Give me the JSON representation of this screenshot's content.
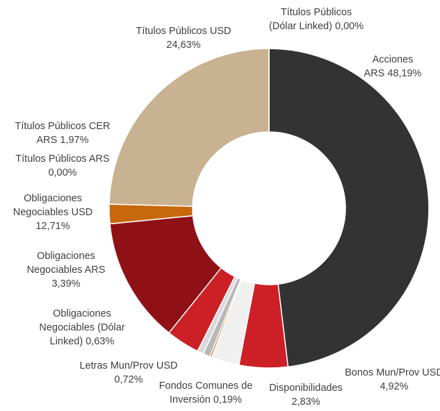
{
  "chart_data": {
    "type": "donut",
    "categories": [
      [
        "Acciones",
        "ARS 48,19%"
      ],
      [
        "Bonos Mun/Prov USD",
        "4,92%"
      ],
      [
        "Disponibilidades",
        "2,83%"
      ],
      [
        "Fondos Comunes de",
        "Inversión 0,19%"
      ],
      [
        "Letras Mun/Prov USD",
        "0,72%"
      ],
      [
        "Obligaciones",
        "Negociables (Dólar",
        "Linked) 0,63%"
      ],
      [
        "Obligaciones",
        "Negociables ARS",
        "3,39%"
      ],
      [
        "Obligaciones",
        "Negociables USD",
        "12,71%"
      ],
      [
        "Títulos Públicos ARS",
        "0,00%"
      ],
      [
        "Títulos Públicos CER",
        "ARS 1,97%"
      ],
      [
        "Títulos Públicos USD",
        "24,63%"
      ],
      [
        "Títulos Públicos",
        "(Dólar Linked) 0,00%"
      ]
    ],
    "values": [
      48.19,
      4.92,
      2.83,
      0.19,
      0.72,
      0.63,
      3.39,
      12.71,
      0.0,
      1.97,
      24.63,
      0.0
    ],
    "colors": [
      "#333333",
      "#cc1f26",
      "#f0f0f0",
      "#cc6a12",
      "#b8b8b8",
      "#d9d9d9",
      "#cc1f26",
      "#8f1116",
      "#a0a0a0",
      "#c8680c",
      "#c9b291",
      "#999999"
    ]
  }
}
